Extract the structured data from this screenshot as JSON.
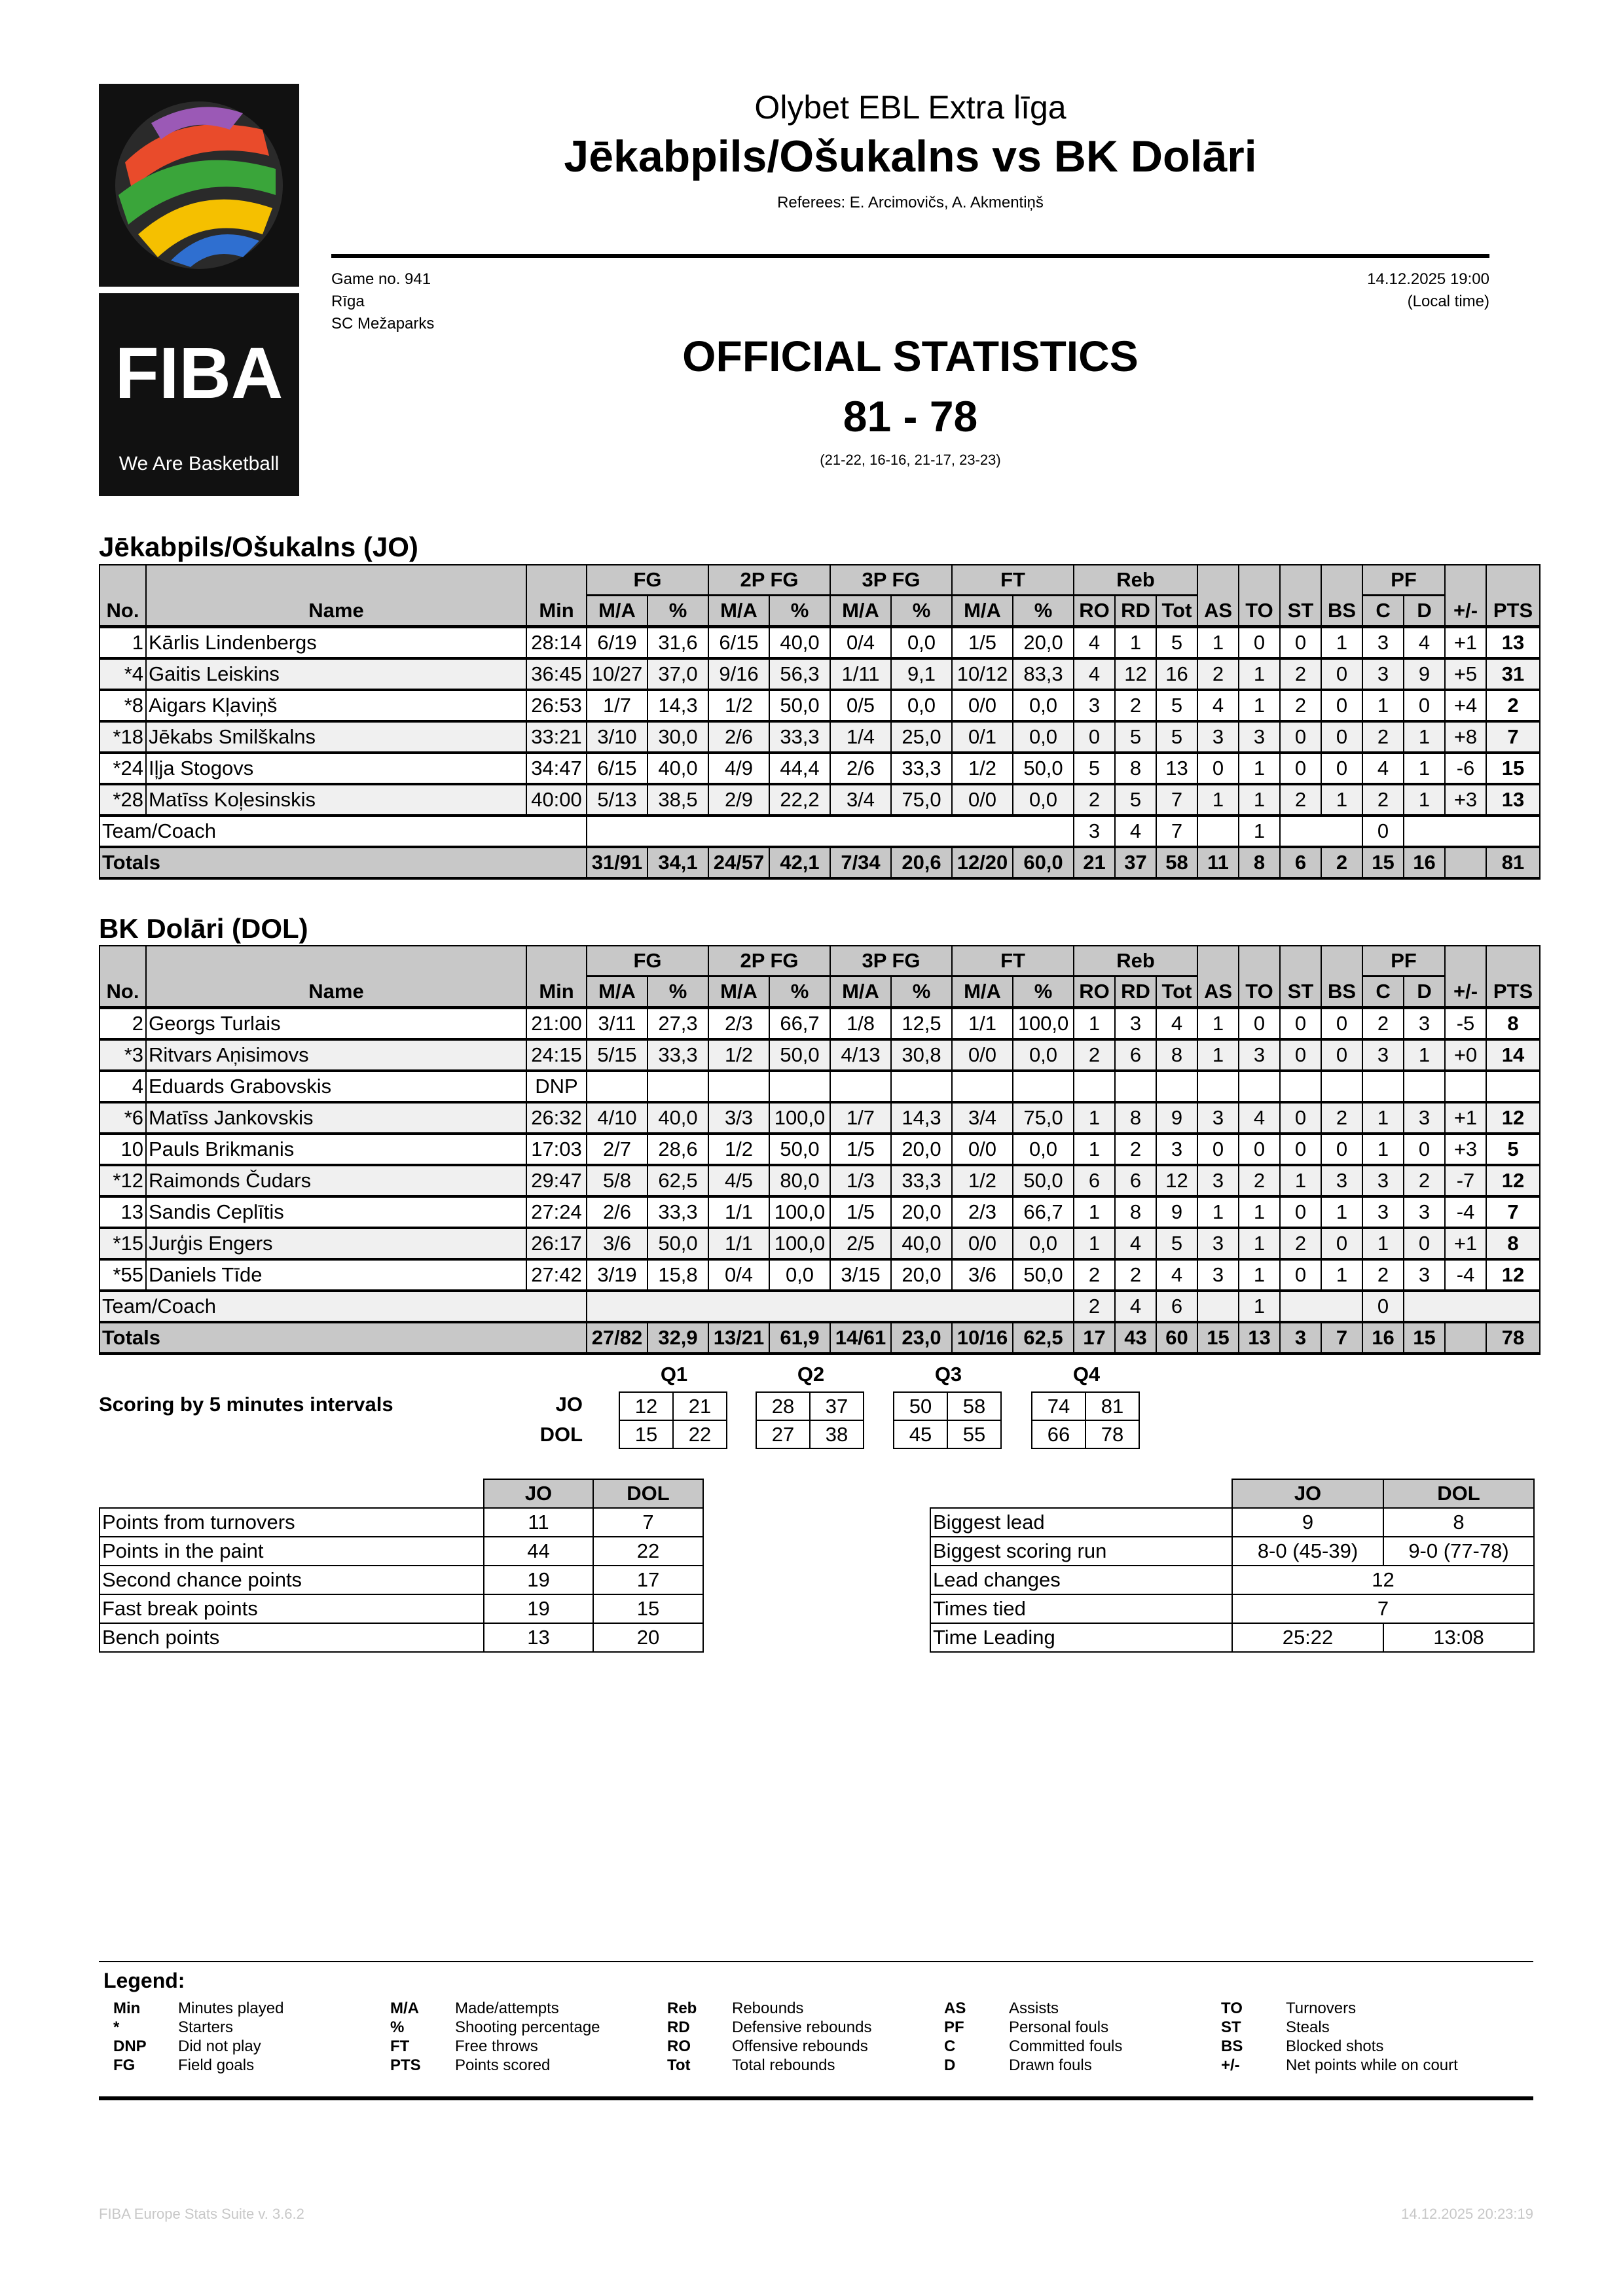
{
  "header": {
    "league": "Olybet EBL Extra līga",
    "matchup": "Jēkabpils/Ošukalns vs BK Dolāri",
    "referees": "Referees: E. Arcimovičs, A. Akmentiņš",
    "game_no": "Game no. 941",
    "city": "Rīga",
    "venue": "SC Mežaparks",
    "datetime": "14.12.2025 19:00",
    "local_time": "(Local time)",
    "official": "OFFICIAL STATISTICS",
    "score": "81 - 78",
    "quarters": "(21-22, 16-16, 21-17, 23-23)",
    "logo_text": "FIBA",
    "logo_tagline": "We Are Basketball"
  },
  "columns": {
    "groups": [
      "FG",
      "2P FG",
      "3P FG",
      "FT",
      "Reb",
      "PF"
    ],
    "no": "No.",
    "name": "Name",
    "min": "Min",
    "ma": "M/A",
    "pct": "%",
    "ro": "RO",
    "rd": "RD",
    "tot": "Tot",
    "as": "AS",
    "to": "TO",
    "st": "ST",
    "bs": "BS",
    "c": "C",
    "d": "D",
    "pm": "+/-",
    "pts": "PTS"
  },
  "teams": [
    {
      "title": "Jēkabpils/Ošukalns (JO)",
      "players": [
        [
          "1",
          "Kārlis Lindenbergs",
          "28:14",
          "6/19",
          "31,6",
          "6/15",
          "40,0",
          "0/4",
          "0,0",
          "1/5",
          "20,0",
          "4",
          "1",
          "5",
          "1",
          "0",
          "0",
          "1",
          "3",
          "4",
          "+1",
          "13"
        ],
        [
          "*4",
          "Gaitis Leiskins",
          "36:45",
          "10/27",
          "37,0",
          "9/16",
          "56,3",
          "1/11",
          "9,1",
          "10/12",
          "83,3",
          "4",
          "12",
          "16",
          "2",
          "1",
          "2",
          "0",
          "3",
          "9",
          "+5",
          "31"
        ],
        [
          "*8",
          "Aigars Kļaviņš",
          "26:53",
          "1/7",
          "14,3",
          "1/2",
          "50,0",
          "0/5",
          "0,0",
          "0/0",
          "0,0",
          "3",
          "2",
          "5",
          "4",
          "1",
          "2",
          "0",
          "1",
          "0",
          "+4",
          "2"
        ],
        [
          "*18",
          "Jēkabs Smilškalns",
          "33:21",
          "3/10",
          "30,0",
          "2/6",
          "33,3",
          "1/4",
          "25,0",
          "0/1",
          "0,0",
          "0",
          "5",
          "5",
          "3",
          "3",
          "0",
          "0",
          "2",
          "1",
          "+8",
          "7"
        ],
        [
          "*24",
          "Iļja Stogovs",
          "34:47",
          "6/15",
          "40,0",
          "4/9",
          "44,4",
          "2/6",
          "33,3",
          "1/2",
          "50,0",
          "5",
          "8",
          "13",
          "0",
          "1",
          "0",
          "0",
          "4",
          "1",
          "-6",
          "15"
        ],
        [
          "*28",
          "Matīss Koļesinskis",
          "40:00",
          "5/13",
          "38,5",
          "2/9",
          "22,2",
          "3/4",
          "75,0",
          "0/0",
          "0,0",
          "2",
          "5",
          "7",
          "1",
          "1",
          "2",
          "1",
          "2",
          "1",
          "+3",
          "13"
        ]
      ],
      "team_coach": {
        "label": "Team/Coach",
        "ro": "3",
        "rd": "4",
        "tot": "7",
        "to": "1",
        "c": "0"
      },
      "totals": {
        "label": "Totals",
        "values": [
          "31/91",
          "34,1",
          "24/57",
          "42,1",
          "7/34",
          "20,6",
          "12/20",
          "60,0",
          "21",
          "37",
          "58",
          "11",
          "8",
          "6",
          "2",
          "15",
          "16",
          "",
          "81"
        ]
      }
    },
    {
      "title": "BK Dolāri (DOL)",
      "players": [
        [
          "2",
          "Georgs Turlais",
          "21:00",
          "3/11",
          "27,3",
          "2/3",
          "66,7",
          "1/8",
          "12,5",
          "1/1",
          "100,0",
          "1",
          "3",
          "4",
          "1",
          "0",
          "0",
          "0",
          "2",
          "3",
          "-5",
          "8"
        ],
        [
          "*3",
          "Ritvars Aņisimovs",
          "24:15",
          "5/15",
          "33,3",
          "1/2",
          "50,0",
          "4/13",
          "30,8",
          "0/0",
          "0,0",
          "2",
          "6",
          "8",
          "1",
          "3",
          "0",
          "0",
          "3",
          "1",
          "+0",
          "14"
        ],
        [
          "4",
          "Eduards Grabovskis",
          "DNP",
          "",
          "",
          "",
          "",
          "",
          "",
          "",
          "",
          "",
          "",
          "",
          "",
          "",
          "",
          "",
          "",
          "",
          "",
          ""
        ],
        [
          "*6",
          "Matīss Jankovskis",
          "26:32",
          "4/10",
          "40,0",
          "3/3",
          "100,0",
          "1/7",
          "14,3",
          "3/4",
          "75,0",
          "1",
          "8",
          "9",
          "3",
          "4",
          "0",
          "2",
          "1",
          "3",
          "+1",
          "12"
        ],
        [
          "10",
          "Pauls Brikmanis",
          "17:03",
          "2/7",
          "28,6",
          "1/2",
          "50,0",
          "1/5",
          "20,0",
          "0/0",
          "0,0",
          "1",
          "2",
          "3",
          "0",
          "0",
          "0",
          "0",
          "1",
          "0",
          "+3",
          "5"
        ],
        [
          "*12",
          "Raimonds Čudars",
          "29:47",
          "5/8",
          "62,5",
          "4/5",
          "80,0",
          "1/3",
          "33,3",
          "1/2",
          "50,0",
          "6",
          "6",
          "12",
          "3",
          "2",
          "1",
          "3",
          "3",
          "2",
          "-7",
          "12"
        ],
        [
          "13",
          "Sandis Ceplītis",
          "27:24",
          "2/6",
          "33,3",
          "1/1",
          "100,0",
          "1/5",
          "20,0",
          "2/3",
          "66,7",
          "1",
          "8",
          "9",
          "1",
          "1",
          "0",
          "1",
          "3",
          "3",
          "-4",
          "7"
        ],
        [
          "*15",
          "Jurģis Engers",
          "26:17",
          "3/6",
          "50,0",
          "1/1",
          "100,0",
          "2/5",
          "40,0",
          "0/0",
          "0,0",
          "1",
          "4",
          "5",
          "3",
          "1",
          "2",
          "0",
          "1",
          "0",
          "+1",
          "8"
        ],
        [
          "*55",
          "Daniels Tīde",
          "27:42",
          "3/19",
          "15,8",
          "0/4",
          "0,0",
          "3/15",
          "20,0",
          "3/6",
          "50,0",
          "2",
          "2",
          "4",
          "3",
          "1",
          "0",
          "1",
          "2",
          "3",
          "-4",
          "12"
        ]
      ],
      "team_coach": {
        "label": "Team/Coach",
        "ro": "2",
        "rd": "4",
        "tot": "6",
        "to": "1",
        "c": "0"
      },
      "totals": {
        "label": "Totals",
        "values": [
          "27/82",
          "32,9",
          "13/21",
          "61,9",
          "14/61",
          "23,0",
          "10/16",
          "62,5",
          "17",
          "43",
          "60",
          "15",
          "13",
          "3",
          "7",
          "16",
          "15",
          "",
          "78"
        ]
      }
    }
  ],
  "scoring": {
    "title": "Scoring by 5 minutes intervals",
    "teams": [
      "JO",
      "DOL"
    ],
    "quarters": [
      {
        "label": "Q1",
        "JO": [
          "12",
          "21"
        ],
        "DOL": [
          "15",
          "22"
        ]
      },
      {
        "label": "Q2",
        "JO": [
          "28",
          "37"
        ],
        "DOL": [
          "27",
          "38"
        ]
      },
      {
        "label": "Q3",
        "JO": [
          "50",
          "58"
        ],
        "DOL": [
          "45",
          "55"
        ]
      },
      {
        "label": "Q4",
        "JO": [
          "74",
          "81"
        ],
        "DOL": [
          "66",
          "78"
        ]
      }
    ]
  },
  "points_table": {
    "headers": [
      "JO",
      "DOL"
    ],
    "rows": [
      [
        "Points from turnovers",
        "11",
        "7"
      ],
      [
        "Points in the paint",
        "44",
        "22"
      ],
      [
        "Second chance points",
        "19",
        "17"
      ],
      [
        "Fast break points",
        "19",
        "15"
      ],
      [
        "Bench points",
        "13",
        "20"
      ]
    ]
  },
  "lead_table": {
    "headers": [
      "JO",
      "DOL"
    ],
    "rows": [
      [
        "Biggest lead",
        "9",
        "8"
      ],
      [
        "Biggest scoring run",
        "8-0 (45-39)",
        "9-0 (77-78)"
      ],
      [
        "Lead changes",
        "12"
      ],
      [
        "Times tied",
        "7"
      ],
      [
        "Time Leading",
        "25:22",
        "13:08"
      ]
    ]
  },
  "legend": {
    "title": "Legend:",
    "columns": [
      [
        [
          "Min",
          "Minutes played"
        ],
        [
          "*",
          "Starters"
        ],
        [
          "DNP",
          "Did not play"
        ],
        [
          "FG",
          "Field goals"
        ]
      ],
      [
        [
          "M/A",
          "Made/attempts"
        ],
        [
          "%",
          "Shooting percentage"
        ],
        [
          "FT",
          "Free throws"
        ],
        [
          "PTS",
          "Points scored"
        ]
      ],
      [
        [
          "Reb",
          "Rebounds"
        ],
        [
          "RD",
          "Defensive rebounds"
        ],
        [
          "RO",
          "Offensive rebounds"
        ],
        [
          "Tot",
          "Total rebounds"
        ]
      ],
      [
        [
          "AS",
          "Assists"
        ],
        [
          "PF",
          "Personal fouls"
        ],
        [
          "C",
          "Committed fouls"
        ],
        [
          "D",
          "Drawn fouls"
        ]
      ],
      [
        [
          "TO",
          "Turnovers"
        ],
        [
          "ST",
          "Steals"
        ],
        [
          "BS",
          "Blocked shots"
        ],
        [
          "+/-",
          "Net points while on court"
        ]
      ]
    ]
  },
  "footer": {
    "left": "FIBA Europe Stats Suite v. 3.6.2",
    "right": "14.12.2025 20:23:19"
  },
  "colors": {
    "header_gray": "#c8c8c8",
    "alt_row": "#f0f0f0",
    "footer_gray": "#c8c8c8"
  }
}
